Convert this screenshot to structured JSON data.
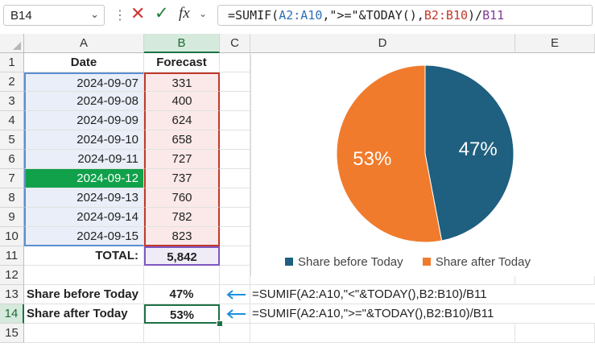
{
  "formula_bar": {
    "name_box": "B14",
    "formula_parts": [
      "=SUMIF(",
      "A2:A10",
      ",\">=\"&TODAY(),",
      "B2:B10",
      ")/",
      "B11"
    ]
  },
  "columns": [
    "A",
    "B",
    "C",
    "D",
    "E"
  ],
  "rows": [
    "1",
    "2",
    "3",
    "4",
    "5",
    "6",
    "7",
    "8",
    "9",
    "10",
    "11",
    "12",
    "13",
    "14",
    "15"
  ],
  "table": {
    "headers": {
      "date": "Date",
      "forecast": "Forecast"
    },
    "rows": [
      {
        "date": "2024-09-07",
        "forecast": "331"
      },
      {
        "date": "2024-09-08",
        "forecast": "400"
      },
      {
        "date": "2024-09-09",
        "forecast": "624"
      },
      {
        "date": "2024-09-10",
        "forecast": "658"
      },
      {
        "date": "2024-09-11",
        "forecast": "727"
      },
      {
        "date": "2024-09-12",
        "forecast": "737"
      },
      {
        "date": "2024-09-13",
        "forecast": "760"
      },
      {
        "date": "2024-09-14",
        "forecast": "782"
      },
      {
        "date": "2024-09-15",
        "forecast": "823"
      }
    ],
    "total_label": "TOTAL:",
    "total_value": "5,842"
  },
  "summary": {
    "before_label": "Share before Today",
    "before_value": "47%",
    "before_formula": "=SUMIF(A2:A10,\"<\"&TODAY(),B2:B10)/B11",
    "after_label": "Share after Today",
    "after_value": "53%",
    "after_formula": "=SUMIF(A2:A10,\">=\"&TODAY(),B2:B10)/B11"
  },
  "colors": {
    "before": "#1f5f7f",
    "after": "#f07b2c",
    "today_highlight": "#10a14a",
    "date_fill": "#e9eef8",
    "forecast_fill": "#fbe9e9",
    "total_fill": "#f0ecf7",
    "arrow": "#1a8fe0"
  },
  "chart_data": {
    "type": "pie",
    "categories": [
      "Share before Today",
      "Share after Today"
    ],
    "values": [
      47,
      53
    ],
    "labels": [
      "47%",
      "53%"
    ],
    "legend": "bottom"
  }
}
